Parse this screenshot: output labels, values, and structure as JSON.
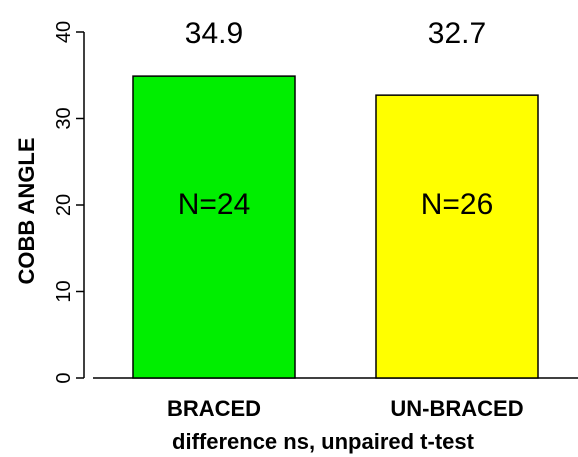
{
  "chart_data": {
    "type": "bar",
    "categories": [
      "BRACED",
      "UN-BRACED"
    ],
    "values": [
      34.9,
      32.7
    ],
    "value_labels": [
      "34.9",
      "32.7"
    ],
    "bar_labels": [
      "N=24",
      "N=26"
    ],
    "bar_colors": [
      "#00ee00",
      "#ffff00"
    ],
    "ylabel": "COBB ANGLE",
    "xlabel": "difference ns, unpaired t-test",
    "ylim": [
      0,
      40
    ],
    "yticks": [
      0,
      10,
      20,
      30,
      40
    ],
    "grid": false,
    "legend": "none"
  }
}
